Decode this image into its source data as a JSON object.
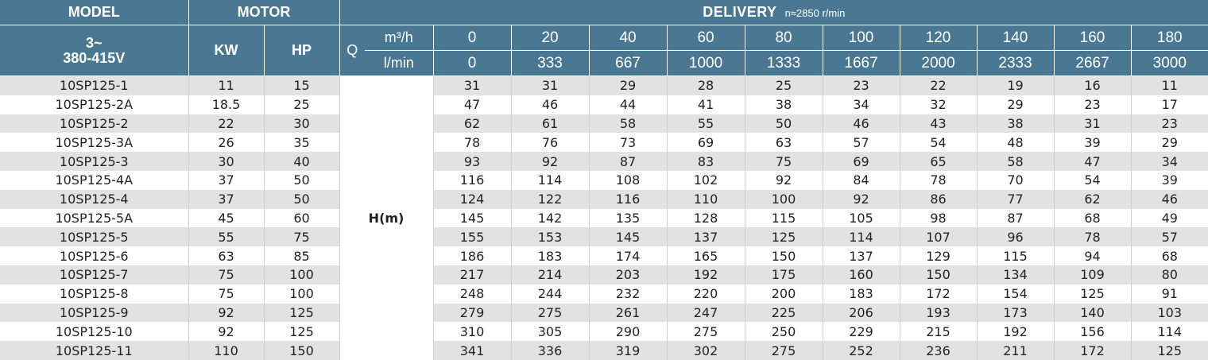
{
  "header": {
    "model_label": "MODEL",
    "motor_label": "MOTOR",
    "delivery_label": "DELIVERY",
    "speed_label": "n≈2850 r/min",
    "voltage_line1": "3~",
    "voltage_line2": "380-415V",
    "kw_label": "KW",
    "hp_label": "HP",
    "q_label": "Q",
    "unit_m3h": "m³/h",
    "unit_lmin": "l/min",
    "head_label": "H(m)"
  },
  "flow_m3h": [
    "0",
    "20",
    "40",
    "60",
    "80",
    "100",
    "120",
    "140",
    "160",
    "180"
  ],
  "flow_lmin": [
    "0",
    "333",
    "667",
    "1000",
    "1333",
    "1667",
    "2000",
    "2333",
    "2667",
    "3000"
  ],
  "rows": [
    {
      "model": "10SP125-1",
      "kw": "11",
      "hp": "15",
      "head": [
        "31",
        "31",
        "29",
        "28",
        "25",
        "23",
        "22",
        "19",
        "16",
        "11"
      ]
    },
    {
      "model": "10SP125-2A",
      "kw": "18.5",
      "hp": "25",
      "head": [
        "47",
        "46",
        "44",
        "41",
        "38",
        "34",
        "32",
        "29",
        "23",
        "17"
      ]
    },
    {
      "model": "10SP125-2",
      "kw": "22",
      "hp": "30",
      "head": [
        "62",
        "61",
        "58",
        "55",
        "50",
        "46",
        "43",
        "38",
        "31",
        "23"
      ]
    },
    {
      "model": "10SP125-3A",
      "kw": "26",
      "hp": "35",
      "head": [
        "78",
        "76",
        "73",
        "69",
        "63",
        "57",
        "54",
        "48",
        "39",
        "29"
      ]
    },
    {
      "model": "10SP125-3",
      "kw": "30",
      "hp": "40",
      "head": [
        "93",
        "92",
        "87",
        "83",
        "75",
        "69",
        "65",
        "58",
        "47",
        "34"
      ]
    },
    {
      "model": "10SP125-4A",
      "kw": "37",
      "hp": "50",
      "head": [
        "116",
        "114",
        "108",
        "102",
        "92",
        "84",
        "78",
        "70",
        "54",
        "39"
      ]
    },
    {
      "model": "10SP125-4",
      "kw": "37",
      "hp": "50",
      "head": [
        "124",
        "122",
        "116",
        "110",
        "100",
        "92",
        "86",
        "77",
        "62",
        "46"
      ]
    },
    {
      "model": "10SP125-5A",
      "kw": "45",
      "hp": "60",
      "head": [
        "145",
        "142",
        "135",
        "128",
        "115",
        "105",
        "98",
        "87",
        "68",
        "49"
      ]
    },
    {
      "model": "10SP125-5",
      "kw": "55",
      "hp": "75",
      "head": [
        "155",
        "153",
        "145",
        "137",
        "125",
        "114",
        "107",
        "96",
        "78",
        "57"
      ]
    },
    {
      "model": "10SP125-6",
      "kw": "63",
      "hp": "85",
      "head": [
        "186",
        "183",
        "174",
        "165",
        "150",
        "137",
        "129",
        "115",
        "94",
        "68"
      ]
    },
    {
      "model": "10SP125-7",
      "kw": "75",
      "hp": "100",
      "head": [
        "217",
        "214",
        "203",
        "192",
        "175",
        "160",
        "150",
        "134",
        "109",
        "80"
      ]
    },
    {
      "model": "10SP125-8",
      "kw": "75",
      "hp": "100",
      "head": [
        "248",
        "244",
        "232",
        "220",
        "200",
        "183",
        "172",
        "154",
        "125",
        "91"
      ]
    },
    {
      "model": "10SP125-9",
      "kw": "92",
      "hp": "125",
      "head": [
        "279",
        "275",
        "261",
        "247",
        "225",
        "206",
        "193",
        "173",
        "140",
        "103"
      ]
    },
    {
      "model": "10SP125-10",
      "kw": "92",
      "hp": "125",
      "head": [
        "310",
        "305",
        "290",
        "275",
        "250",
        "229",
        "215",
        "192",
        "156",
        "114"
      ]
    },
    {
      "model": "10SP125-11",
      "kw": "110",
      "hp": "150",
      "head": [
        "341",
        "336",
        "319",
        "302",
        "275",
        "252",
        "236",
        "211",
        "172",
        "125"
      ]
    }
  ]
}
